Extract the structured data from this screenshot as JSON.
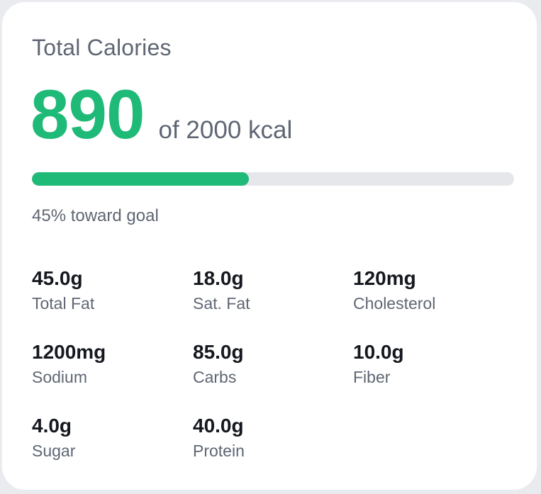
{
  "card": {
    "title": "Total Calories",
    "consumed": "890",
    "goal_text": "of 2000 kcal",
    "progress_fraction": 0.45,
    "progress_text": "45% toward goal"
  },
  "colors": {
    "accent": "#1fba78",
    "track": "#e5e7eb",
    "text_primary": "#15181e",
    "text_secondary": "#5f6673"
  },
  "nutrients": [
    {
      "amount": "45.0g",
      "label": "Total Fat"
    },
    {
      "amount": "18.0g",
      "label": "Sat. Fat"
    },
    {
      "amount": "120mg",
      "label": "Cholesterol"
    },
    {
      "amount": "1200mg",
      "label": "Sodium"
    },
    {
      "amount": "85.0g",
      "label": "Carbs"
    },
    {
      "amount": "10.0g",
      "label": "Fiber"
    },
    {
      "amount": "4.0g",
      "label": "Sugar"
    },
    {
      "amount": "40.0g",
      "label": "Protein"
    }
  ]
}
